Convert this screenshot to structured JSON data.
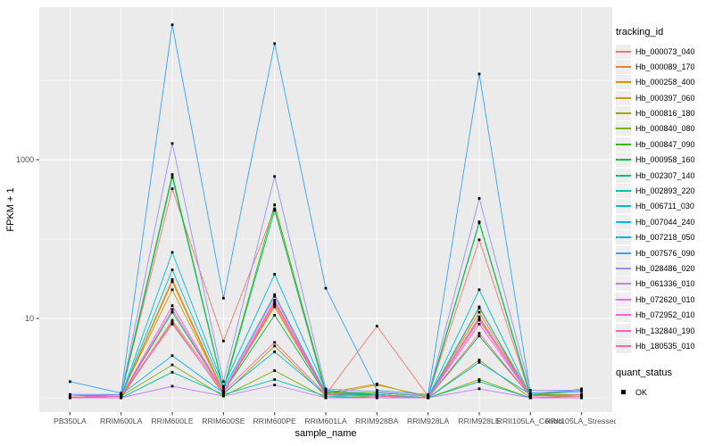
{
  "chart_data": {
    "type": "line",
    "title": "",
    "xlabel": "sample_name",
    "ylabel": "FPKM + 1",
    "y_scale": "log10",
    "y_ticks": [
      10,
      1000
    ],
    "y_minor_gridlines": [
      1,
      100,
      10000
    ],
    "ylim_log10": [
      -0.18,
      4.92
    ],
    "grid": true,
    "panel_bg": "#EBEBEB",
    "gridline_color": "#FFFFFF",
    "point_color": "#000000",
    "axis_text_color": "#4D4D4D",
    "categories": [
      "PB350LA",
      "RRIM600LA",
      "RRIM600LE",
      "RRIM600SE",
      "RRIM600PE",
      "RRIM601LA",
      "RRIM928BA",
      "RRIM928LA",
      "RRIM928LE",
      "RRII105LA_Control",
      "RRII105LA_Stressed"
    ],
    "legend": {
      "title": "tracking_id",
      "position": "right"
    },
    "quant_legend": {
      "title": "quant_status",
      "items": [
        "OK"
      ]
    },
    "series": [
      {
        "name": "Hb_000073_040",
        "color": "#F8766D",
        "values": [
          1.05,
          1.1,
          430,
          5.2,
          240,
          1.1,
          8,
          1.05,
          98,
          1.05,
          1.1
        ]
      },
      {
        "name": "Hb_000089_170",
        "color": "#EA8331",
        "values": [
          1,
          1.05,
          31,
          1.2,
          16,
          1.2,
          1.1,
          1,
          13.5,
          1.1,
          1.05
        ]
      },
      {
        "name": "Hb_000258_400",
        "color": "#D89000",
        "values": [
          1,
          1.05,
          29,
          1.15,
          15,
          1.15,
          1.5,
          1,
          12,
          1.05,
          1.3
        ]
      },
      {
        "name": "Hb_000397_060",
        "color": "#C49A00",
        "values": [
          1.05,
          1.1,
          23,
          1.2,
          14,
          1.1,
          1.45,
          1.05,
          10,
          1.1,
          1.25
        ]
      },
      {
        "name": "Hb_000816_180",
        "color": "#A3A500",
        "values": [
          1,
          1,
          9,
          1.1,
          4.5,
          1.05,
          1.1,
          1,
          3,
          1,
          1.05
        ]
      },
      {
        "name": "Hb_000840_080",
        "color": "#7CAE00",
        "values": [
          1,
          1.05,
          2.6,
          1.05,
          2.2,
          1,
          1.05,
          1,
          1.7,
          1,
          1
        ]
      },
      {
        "name": "Hb_000847_090",
        "color": "#39B600",
        "values": [
          1.05,
          1.1,
          650,
          1.3,
          270,
          1.2,
          1.15,
          1.05,
          165,
          1.1,
          1.1
        ]
      },
      {
        "name": "Hb_000958_160",
        "color": "#00BB4E",
        "values": [
          1,
          1.05,
          12,
          1.2,
          11,
          1.1,
          1.1,
          1,
          6,
          1.05,
          1.05
        ]
      },
      {
        "name": "Hb_002307_140",
        "color": "#00BF7D",
        "values": [
          1,
          1.05,
          600,
          1.25,
          230,
          1.15,
          1.1,
          1,
          160,
          1.05,
          1.05
        ]
      },
      {
        "name": "Hb_002893_220",
        "color": "#00C1A3",
        "values": [
          1,
          1,
          2.1,
          1.1,
          1.7,
          1.05,
          1,
          1,
          1.6,
          1,
          1
        ]
      },
      {
        "name": "Hb_006711_030",
        "color": "#00BFC4",
        "values": [
          1,
          1.05,
          41,
          1.3,
          20,
          1.15,
          1.05,
          1,
          14,
          1,
          1
        ]
      },
      {
        "name": "Hb_007044_240",
        "color": "#00BAE0",
        "values": [
          1,
          1.05,
          68,
          1.4,
          36,
          1.25,
          1.1,
          1,
          23,
          1.05,
          1.05
        ]
      },
      {
        "name": "Hb_007218_050",
        "color": "#00B0F6",
        "values": [
          1.1,
          1.1,
          3.4,
          1.15,
          3.8,
          1.1,
          1.05,
          1,
          2.8,
          1.1,
          1.2
        ]
      },
      {
        "name": "Hb_007576_090",
        "color": "#35A2FF",
        "values": [
          1.6,
          1.15,
          50000,
          18,
          29000,
          24,
          1.25,
          1.1,
          12000,
          1.15,
          1.25
        ]
      },
      {
        "name": "Hb_028486_020",
        "color": "#9590FF",
        "values": [
          1.1,
          1.1,
          1600,
          1.6,
          615,
          1.3,
          1.2,
          1.05,
          325,
          1.25,
          1.25
        ]
      },
      {
        "name": "Hb_061336_010",
        "color": "#C77CFF",
        "values": [
          1,
          1,
          1.4,
          1.05,
          1.45,
          1,
          1,
          1,
          1.3,
          1,
          1
        ]
      },
      {
        "name": "Hb_072620_010",
        "color": "#E76BF3",
        "values": [
          1,
          1.05,
          14.5,
          1.2,
          19,
          1.1,
          1.05,
          1,
          10.5,
          1.05,
          1.05
        ]
      },
      {
        "name": "Hb_072952_010",
        "color": "#FA62DB",
        "values": [
          1,
          1.05,
          8.5,
          1.15,
          17,
          1.1,
          1.05,
          1,
          8.5,
          1.05,
          1.05
        ]
      },
      {
        "name": "Hb_132840_190",
        "color": "#FF62BC",
        "values": [
          1,
          1.05,
          13,
          1.2,
          15,
          1.1,
          1.05,
          1,
          9.5,
          1.05,
          1.05
        ]
      },
      {
        "name": "Hb_180535_010",
        "color": "#FF6A98",
        "values": [
          1.05,
          1.05,
          9.5,
          1.2,
          5,
          1.1,
          1.05,
          1,
          6.5,
          1.05,
          1.1
        ]
      }
    ]
  }
}
